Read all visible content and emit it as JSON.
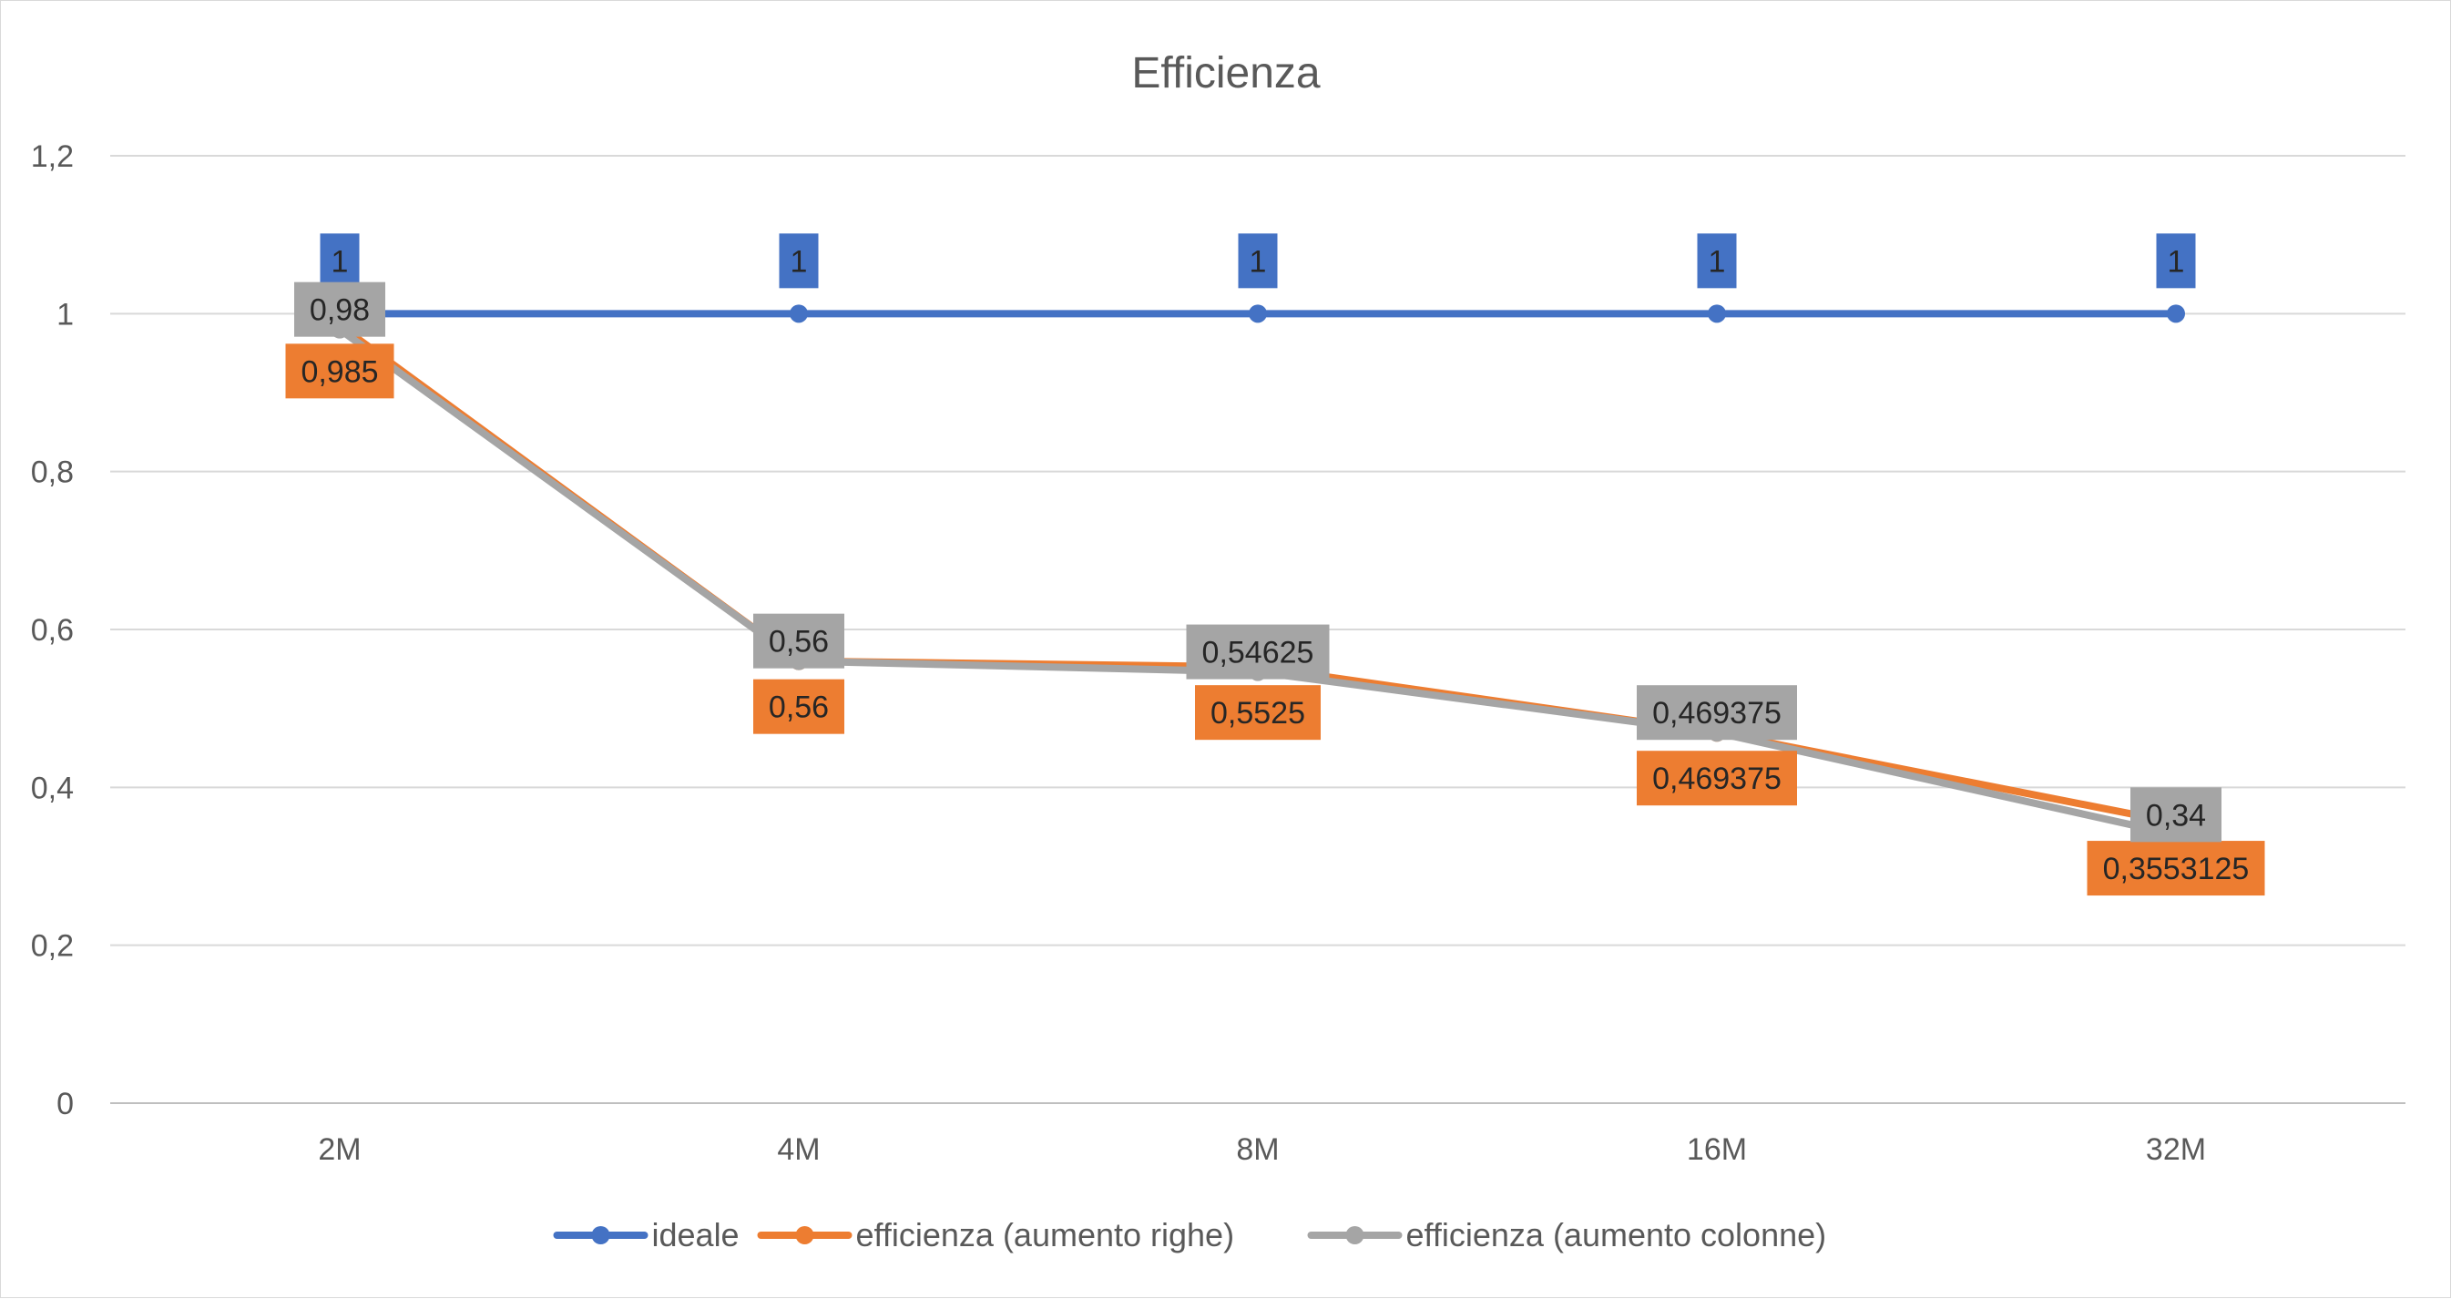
{
  "chart_data": {
    "type": "line",
    "title": "Efficienza",
    "xlabel": "",
    "ylabel": "",
    "categories": [
      "2M",
      "4M",
      "8M",
      "16M",
      "32M"
    ],
    "ylim": [
      0,
      1.2
    ],
    "yticks": [
      "0",
      "0,2",
      "0,4",
      "0,6",
      "0,8",
      "1",
      "1,2"
    ],
    "ytick_values": [
      0,
      0.2,
      0.4,
      0.6,
      0.8,
      1.0,
      1.2
    ],
    "grid": true,
    "legend_position": "bottom",
    "series": [
      {
        "name": "ideale",
        "color": "#4472C4",
        "values": [
          1,
          1,
          1,
          1,
          1
        ],
        "labels": [
          "1",
          "1",
          "1",
          "1",
          "1"
        ],
        "label_position": "above"
      },
      {
        "name": "efficienza (aumento righe)",
        "color": "#ED7D31",
        "values": [
          0.985,
          0.56,
          0.5525,
          0.469375,
          0.3553125
        ],
        "labels": [
          "0,985",
          "0,56",
          "0,5525",
          "0,469375",
          "0,3553125"
        ],
        "label_position": "below"
      },
      {
        "name": "efficienza (aumento colonne)",
        "color": "#A5A5A5",
        "values": [
          0.98,
          0.56,
          0.54625,
          0.469375,
          0.34
        ],
        "labels": [
          "0,98",
          "0,56",
          "0,54625",
          "0,469375",
          "0,34"
        ],
        "label_position": "center"
      }
    ]
  }
}
